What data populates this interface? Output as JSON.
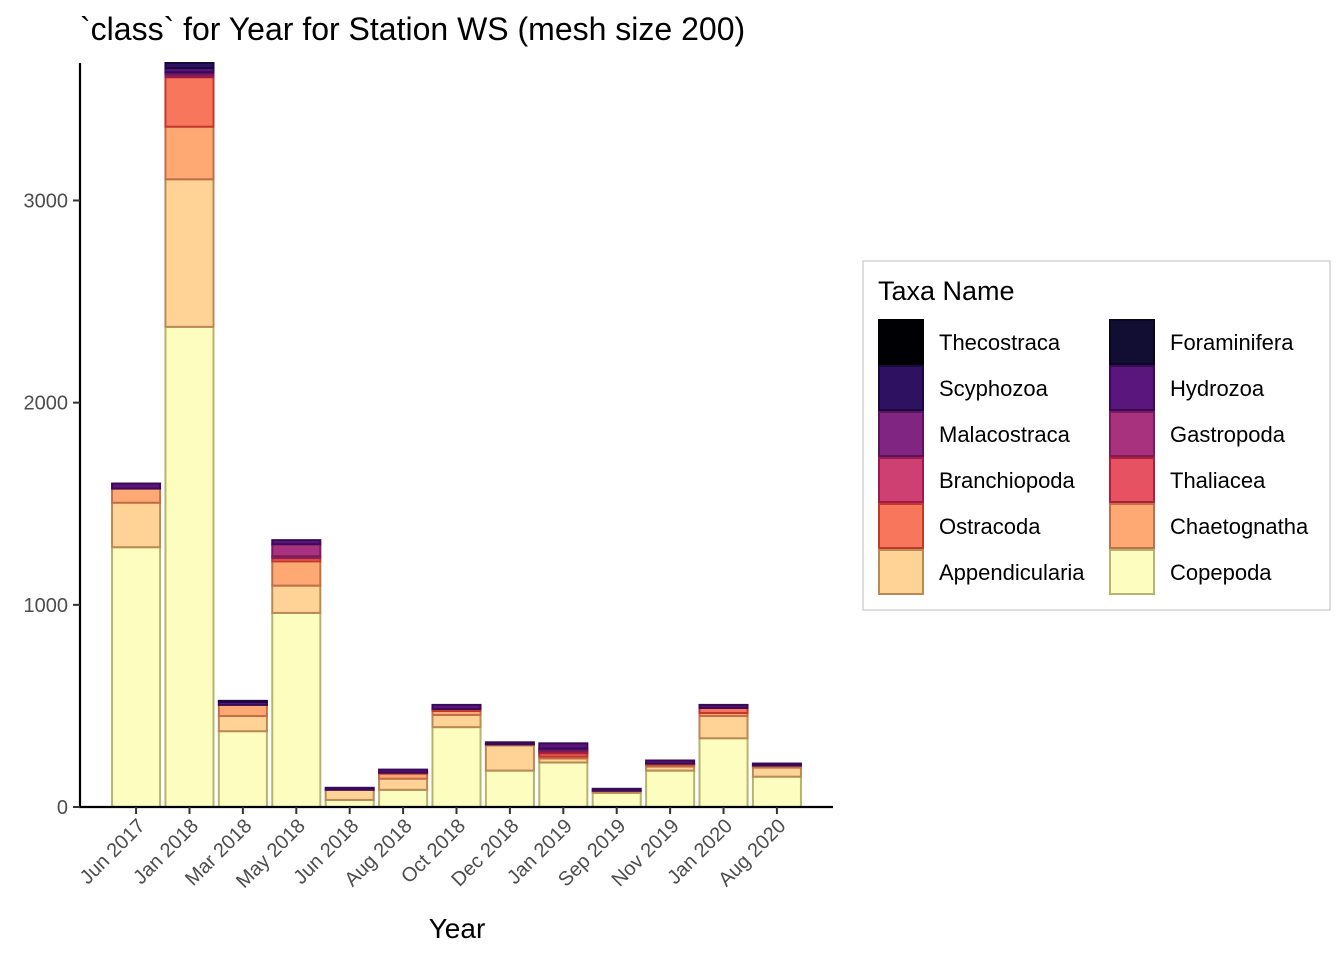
{
  "chart_data": {
    "type": "bar",
    "stacked": true,
    "title": "`class` for Year for Station WS (mesh size 200)",
    "xlabel": "Year",
    "ylabel": "",
    "ylim": [
      0,
      3680
    ],
    "yticks": [
      0,
      1000,
      2000,
      3000
    ],
    "grid": false,
    "legend": {
      "title": "Taxa Name",
      "placement": "right",
      "columns": 2
    },
    "categories": [
      "Jun 2017",
      "Jan 2018",
      "Mar 2018",
      "May 2018",
      "Jun 2018",
      "Aug 2018",
      "Oct 2018",
      "Dec 2018",
      "Jan 2019",
      "Sep 2019",
      "Nov 2019",
      "Jan 2020",
      "Aug 2020"
    ],
    "series": [
      {
        "name": "Copepoda",
        "fill": "#FCFDBF",
        "stroke": "#B5B56F",
        "values": [
          1285,
          2375,
          375,
          960,
          35,
          85,
          395,
          180,
          220,
          70,
          180,
          340,
          150
        ]
      },
      {
        "name": "Appendicularia",
        "fill": "#FED395",
        "stroke": "#B98A55",
        "values": [
          220,
          730,
          75,
          135,
          50,
          55,
          60,
          125,
          20,
          10,
          20,
          110,
          45
        ]
      },
      {
        "name": "Chaetognatha",
        "fill": "#FEA873",
        "stroke": "#C07048",
        "values": [
          70,
          260,
          55,
          120,
          0,
          25,
          20,
          5,
          10,
          0,
          10,
          15,
          10
        ]
      },
      {
        "name": "Ostracoda",
        "fill": "#F8765C",
        "stroke": "#C0392B",
        "values": [
          0,
          245,
          0,
          15,
          0,
          5,
          10,
          0,
          15,
          0,
          5,
          25,
          0
        ]
      },
      {
        "name": "Thaliacea",
        "fill": "#E75263",
        "stroke": "#B01F3A",
        "values": [
          0,
          0,
          0,
          0,
          0,
          0,
          0,
          0,
          10,
          0,
          0,
          0,
          0
        ]
      },
      {
        "name": "Branchiopoda",
        "fill": "#CD4071",
        "stroke": "#9C1B4F",
        "values": [
          0,
          10,
          0,
          10,
          0,
          0,
          0,
          0,
          0,
          0,
          0,
          0,
          0
        ]
      },
      {
        "name": "Gastropoda",
        "fill": "#A8327D",
        "stroke": "#7A1B5C",
        "values": [
          0,
          10,
          0,
          60,
          0,
          0,
          0,
          0,
          10,
          0,
          0,
          0,
          0
        ]
      },
      {
        "name": "Malacostraca",
        "fill": "#802582",
        "stroke": "#5A145D",
        "values": [
          0,
          5,
          0,
          0,
          0,
          0,
          0,
          0,
          5,
          0,
          0,
          0,
          0
        ]
      },
      {
        "name": "Hydrozoa",
        "fill": "#5B167E",
        "stroke": "#3A0A58",
        "values": [
          25,
          20,
          15,
          20,
          10,
          15,
          20,
          10,
          25,
          10,
          15,
          15,
          10
        ]
      },
      {
        "name": "Scyphozoa",
        "fill": "#2E1161",
        "stroke": "#1A0840",
        "values": [
          0,
          25,
          5,
          0,
          0,
          0,
          0,
          0,
          0,
          0,
          0,
          0,
          0
        ]
      },
      {
        "name": "Foraminifera",
        "fill": "#120D32",
        "stroke": "#0A0620",
        "values": [
          0,
          0,
          0,
          0,
          0,
          0,
          0,
          0,
          0,
          0,
          0,
          0,
          0
        ]
      },
      {
        "name": "Thecostraca",
        "fill": "#000004",
        "stroke": "#000000",
        "values": [
          0,
          0,
          0,
          0,
          0,
          0,
          0,
          0,
          0,
          0,
          0,
          0,
          0
        ]
      }
    ],
    "legend_order": [
      "Thecostraca",
      "Foraminifera",
      "Scyphozoa",
      "Hydrozoa",
      "Malacostraca",
      "Gastropoda",
      "Branchiopoda",
      "Thaliacea",
      "Ostracoda",
      "Chaetognatha",
      "Appendicularia",
      "Copepoda"
    ]
  }
}
